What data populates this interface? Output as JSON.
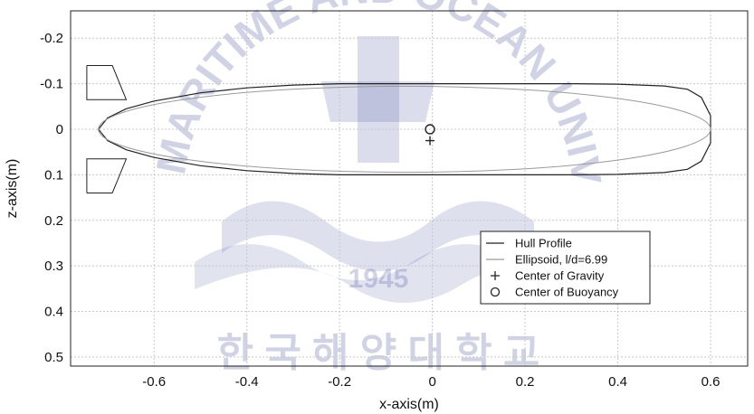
{
  "chart_data": {
    "type": "line",
    "xlabel": "x-axis(m)",
    "ylabel": "z-axis(m)",
    "xlim": [
      -0.78,
      0.68
    ],
    "ylim": [
      0.52,
      -0.26
    ],
    "y_inverted": true,
    "grid": true,
    "x_ticks": [
      -0.6,
      -0.4,
      -0.2,
      0,
      0.2,
      0.4,
      0.6
    ],
    "x_tick_labels": [
      "-0.6",
      "-0.4",
      "-0.2",
      "0",
      "0.2",
      "0.4",
      "0.6"
    ],
    "y_ticks": [
      -0.2,
      -0.1,
      0,
      0.1,
      0.2,
      0.3,
      0.4,
      0.5
    ],
    "y_tick_labels": [
      "-0.2",
      "-0.1",
      "0",
      "0.1",
      "0.2",
      "0.3",
      "0.4",
      "0.5"
    ],
    "legend_placement": "bottom-right",
    "series": [
      {
        "name": "Hull Profile",
        "color": "#222222",
        "marker": "line",
        "x": [
          -0.72,
          -0.7,
          -0.66,
          -0.6,
          -0.5,
          -0.4,
          -0.3,
          -0.2,
          -0.1,
          0,
          0.1,
          0.2,
          0.3,
          0.4,
          0.5,
          0.55,
          0.58,
          0.6,
          0.6,
          0.58,
          0.55,
          0.5,
          0.4,
          0.3,
          0.2,
          0.1,
          0,
          -0.1,
          -0.2,
          -0.3,
          -0.4,
          -0.5,
          -0.6,
          -0.66,
          -0.7,
          -0.72
        ],
        "y": [
          0,
          -0.025,
          -0.045,
          -0.062,
          -0.08,
          -0.091,
          -0.097,
          -0.1,
          -0.1,
          -0.1,
          -0.1,
          -0.1,
          -0.1,
          -0.099,
          -0.095,
          -0.088,
          -0.07,
          -0.03,
          0.03,
          0.07,
          0.088,
          0.095,
          0.099,
          0.1,
          0.1,
          0.1,
          0.1,
          0.1,
          0.1,
          0.097,
          0.091,
          0.08,
          0.062,
          0.045,
          0.025,
          0
        ]
      },
      {
        "name": "Ellipsoid, l/d=6.99",
        "color": "#9a9a9a",
        "marker": "line",
        "center": [
          -0.06,
          0
        ],
        "semi_axes": [
          0.66,
          0.0944
        ]
      },
      {
        "name": "Center of Gravity",
        "color": "#222222",
        "marker": "plus",
        "x": [
          -0.005
        ],
        "y": [
          0.025
        ]
      },
      {
        "name": "Center of Buoyancy",
        "color": "#222222",
        "marker": "circle",
        "x": [
          -0.005
        ],
        "y": [
          0.0
        ]
      }
    ],
    "fins": [
      {
        "x": [
          -0.745,
          -0.69,
          -0.66,
          -0.745,
          -0.745
        ],
        "y": [
          -0.14,
          -0.14,
          -0.065,
          -0.065,
          -0.14
        ]
      },
      {
        "x": [
          -0.745,
          -0.69,
          -0.66,
          -0.745,
          -0.745
        ],
        "y": [
          0.14,
          0.14,
          0.065,
          0.065,
          0.14
        ]
      }
    ]
  },
  "watermark": {
    "arc_text": "KOREA MARITIME AND OCEAN UNIVERSITY",
    "year": "1945",
    "bottom_text": "한 국 해 양 대 학 교",
    "color": "#5a63a8"
  }
}
